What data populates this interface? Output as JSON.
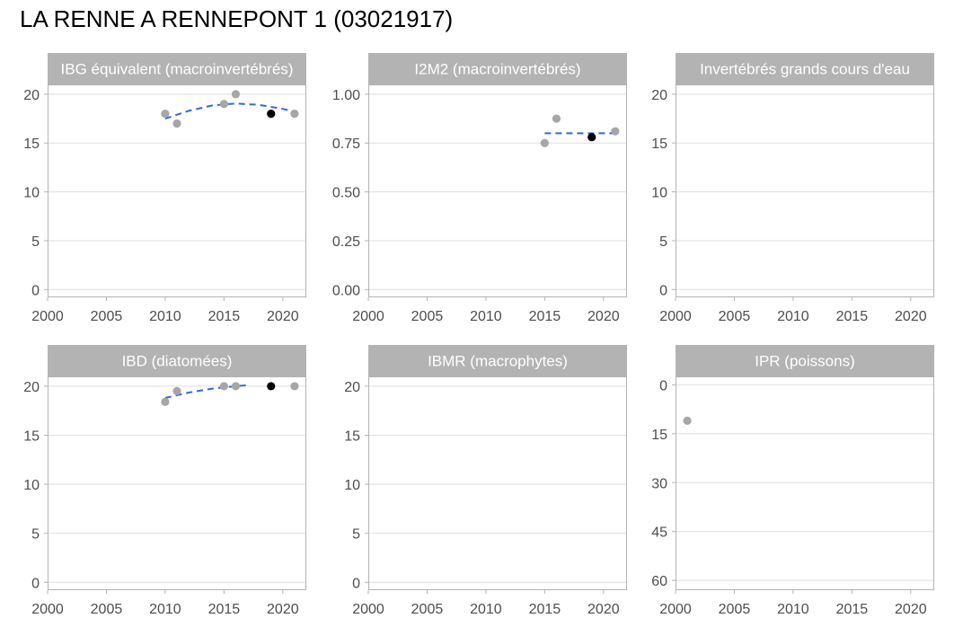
{
  "title": "LA RENNE A RENNEPONT 1 (03021917)",
  "colors": {
    "strip": "#b3b3b3",
    "panel_border": "#b3b3b3",
    "grid": "#dedede",
    "point": "#a6a6a6",
    "point_highlight": "#000000",
    "trend": "#3366e6",
    "tick_text": "#4d4d4d"
  },
  "chart_data": [
    {
      "type": "scatter",
      "title": "IBG équivalent (macroinvertébrés)",
      "xlim": [
        2000,
        2022
      ],
      "x_ticks": [
        2000,
        2005,
        2010,
        2015,
        2020
      ],
      "x_tick_labels": [
        "2000",
        "2005",
        "2010",
        "2015",
        "2020"
      ],
      "ylim": [
        -0.8,
        21
      ],
      "y_ticks": [
        0,
        5,
        10,
        15,
        20
      ],
      "y_tick_labels": [
        "0",
        "5",
        "10",
        "15",
        "20"
      ],
      "y_reversed": false,
      "grid": true,
      "points": [
        {
          "x": 2010,
          "y": 18,
          "highlight": false
        },
        {
          "x": 2011,
          "y": 17,
          "highlight": false
        },
        {
          "x": 2015,
          "y": 19,
          "highlight": false
        },
        {
          "x": 2016,
          "y": 20,
          "highlight": false
        },
        {
          "x": 2019,
          "y": 18,
          "highlight": true
        },
        {
          "x": 2021,
          "y": 18,
          "highlight": false
        }
      ],
      "trend": [
        {
          "x": 2010,
          "y": 17.5
        },
        {
          "x": 2012,
          "y": 18.3
        },
        {
          "x": 2014,
          "y": 18.85
        },
        {
          "x": 2016,
          "y": 19.05
        },
        {
          "x": 2018,
          "y": 18.9
        },
        {
          "x": 2020,
          "y": 18.5
        },
        {
          "x": 2021,
          "y": 18.2
        }
      ]
    },
    {
      "type": "scatter",
      "title": "I2M2 (macroinvertébrés)",
      "xlim": [
        2000,
        2022
      ],
      "x_ticks": [
        2000,
        2005,
        2010,
        2015,
        2020
      ],
      "x_tick_labels": [
        "2000",
        "2005",
        "2010",
        "2015",
        "2020"
      ],
      "ylim": [
        -0.04,
        1.05
      ],
      "y_ticks": [
        0,
        0.25,
        0.5,
        0.75,
        1.0
      ],
      "y_tick_labels": [
        "0.00",
        "0.25",
        "0.50",
        "0.75",
        "1.00"
      ],
      "y_reversed": false,
      "grid": true,
      "points": [
        {
          "x": 2015,
          "y": 0.75,
          "highlight": false
        },
        {
          "x": 2016,
          "y": 0.875,
          "highlight": false
        },
        {
          "x": 2019,
          "y": 0.78,
          "highlight": true
        },
        {
          "x": 2021,
          "y": 0.81,
          "highlight": false
        }
      ],
      "trend": [
        {
          "x": 2015,
          "y": 0.8
        },
        {
          "x": 2021,
          "y": 0.8
        }
      ]
    },
    {
      "type": "scatter",
      "title": "Invertébrés grands cours d'eau",
      "xlim": [
        2000,
        2022
      ],
      "x_ticks": [
        2000,
        2005,
        2010,
        2015,
        2020
      ],
      "x_tick_labels": [
        "2000",
        "2005",
        "2010",
        "2015",
        "2020"
      ],
      "ylim": [
        -0.8,
        21
      ],
      "y_ticks": [
        0,
        5,
        10,
        15,
        20
      ],
      "y_tick_labels": [
        "0",
        "5",
        "10",
        "15",
        "20"
      ],
      "y_reversed": false,
      "grid": true,
      "points": [],
      "trend": []
    },
    {
      "type": "scatter",
      "title": "IBD (diatomées)",
      "xlim": [
        2000,
        2022
      ],
      "x_ticks": [
        2000,
        2005,
        2010,
        2015,
        2020
      ],
      "x_tick_labels": [
        "2000",
        "2005",
        "2010",
        "2015",
        "2020"
      ],
      "ylim": [
        -0.8,
        21
      ],
      "y_ticks": [
        0,
        5,
        10,
        15,
        20
      ],
      "y_tick_labels": [
        "0",
        "5",
        "10",
        "15",
        "20"
      ],
      "y_reversed": false,
      "grid": true,
      "points": [
        {
          "x": 2010,
          "y": 18.4,
          "highlight": false
        },
        {
          "x": 2011,
          "y": 19.5,
          "highlight": false
        },
        {
          "x": 2015,
          "y": 20,
          "highlight": false
        },
        {
          "x": 2016,
          "y": 20,
          "highlight": false
        },
        {
          "x": 2019,
          "y": 20,
          "highlight": true
        },
        {
          "x": 2021,
          "y": 20,
          "highlight": false
        }
      ],
      "trend": [
        {
          "x": 2010,
          "y": 18.8
        },
        {
          "x": 2012,
          "y": 19.35
        },
        {
          "x": 2014,
          "y": 19.75
        },
        {
          "x": 2016,
          "y": 20.0
        },
        {
          "x": 2017,
          "y": 20.1
        }
      ]
    },
    {
      "type": "scatter",
      "title": "IBMR (macrophytes)",
      "xlim": [
        2000,
        2022
      ],
      "x_ticks": [
        2000,
        2005,
        2010,
        2015,
        2020
      ],
      "x_tick_labels": [
        "2000",
        "2005",
        "2010",
        "2015",
        "2020"
      ],
      "ylim": [
        -0.8,
        21
      ],
      "y_ticks": [
        0,
        5,
        10,
        15,
        20
      ],
      "y_tick_labels": [
        "0",
        "5",
        "10",
        "15",
        "20"
      ],
      "y_reversed": false,
      "grid": true,
      "points": [],
      "trend": []
    },
    {
      "type": "scatter",
      "title": "IPR (poissons)",
      "xlim": [
        2000,
        2022
      ],
      "x_ticks": [
        2000,
        2005,
        2010,
        2015,
        2020
      ],
      "x_tick_labels": [
        "2000",
        "2005",
        "2010",
        "2015",
        "2020"
      ],
      "ylim": [
        -2.6,
        63
      ],
      "y_ticks": [
        0,
        15,
        30,
        45,
        60
      ],
      "y_tick_labels": [
        "0",
        "15",
        "30",
        "45",
        "60"
      ],
      "y_reversed": true,
      "grid": true,
      "points": [
        {
          "x": 2001,
          "y": 11,
          "highlight": false
        }
      ],
      "trend": []
    }
  ]
}
